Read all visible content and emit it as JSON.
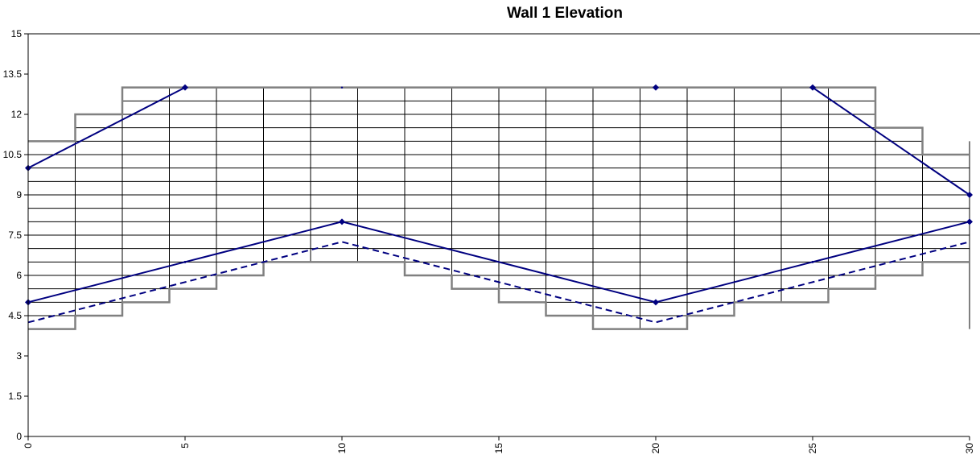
{
  "chart_data": {
    "type": "line",
    "title": "Wall 1 Elevation",
    "xlabel": "",
    "ylabel": "",
    "xlim": [
      0,
      30
    ],
    "ylim": [
      0,
      15
    ],
    "x_ticks": [
      "0",
      "5",
      "10",
      "15",
      "20",
      "25",
      "30"
    ],
    "y_ticks": [
      "0",
      "1.5",
      "3",
      "4.5",
      "6",
      "7.5",
      "9",
      "10.5",
      "12",
      "13.5",
      "15"
    ],
    "x_tick_values": [
      0,
      5,
      10,
      15,
      20,
      25,
      30
    ],
    "y_tick_values": [
      0,
      1.5,
      3,
      4.5,
      6,
      7.5,
      9,
      10.5,
      12,
      13.5,
      15
    ],
    "legend": "none",
    "grid": false,
    "series": [
      {
        "style": "stepped-top-outline",
        "color": "#808080",
        "points": [
          [
            0,
            11
          ],
          [
            1.5,
            11
          ],
          [
            1.5,
            12
          ],
          [
            3,
            12
          ],
          [
            3,
            13
          ],
          [
            27,
            13
          ],
          [
            27,
            11.5
          ],
          [
            28.5,
            11.5
          ],
          [
            28.5,
            10.5
          ],
          [
            30,
            10.5
          ]
        ]
      },
      {
        "style": "stepped-bottom-outline",
        "color": "#808080",
        "points": [
          [
            0,
            4
          ],
          [
            1.5,
            4
          ],
          [
            1.5,
            4.5
          ],
          [
            3,
            4.5
          ],
          [
            3,
            5
          ],
          [
            4.5,
            5
          ],
          [
            4.5,
            5.5
          ],
          [
            6,
            5.5
          ],
          [
            6,
            6
          ],
          [
            7.5,
            6
          ],
          [
            7.5,
            6.5
          ],
          [
            12,
            6.5
          ],
          [
            12,
            6
          ],
          [
            13.5,
            6
          ],
          [
            13.5,
            5.5
          ],
          [
            15,
            5.5
          ],
          [
            15,
            5
          ],
          [
            16.5,
            5
          ],
          [
            16.5,
            4.5
          ],
          [
            18,
            4.5
          ],
          [
            18,
            4
          ],
          [
            21,
            4
          ],
          [
            21,
            4.5
          ],
          [
            22.5,
            4.5
          ],
          [
            22.5,
            5
          ],
          [
            25.5,
            5
          ],
          [
            25.5,
            5.5
          ],
          [
            27,
            5.5
          ],
          [
            27,
            6
          ],
          [
            28.5,
            6
          ],
          [
            28.5,
            6.5
          ],
          [
            30,
            6.5
          ]
        ]
      },
      {
        "style": "top-line-markers",
        "color": "#000080",
        "points": [
          [
            0,
            10
          ],
          [
            5,
            13
          ],
          [
            10,
            13
          ],
          [
            20,
            13
          ],
          [
            25,
            13
          ],
          [
            30,
            9
          ]
        ],
        "segments": [
          [
            0,
            1
          ],
          [
            4,
            5
          ]
        ]
      },
      {
        "style": "bottom-line-markers",
        "color": "#000080",
        "points": [
          [
            0,
            5
          ],
          [
            5,
            6.5
          ],
          [
            10,
            8
          ],
          [
            20,
            5
          ],
          [
            25,
            6.5
          ],
          [
            30,
            8
          ]
        ]
      },
      {
        "style": "bottom-line-dashed",
        "color": "#000080",
        "points": [
          [
            0,
            4.25
          ],
          [
            10,
            7.25
          ],
          [
            20,
            4.25
          ],
          [
            30,
            7.25
          ]
        ]
      }
    ],
    "wall_grid": {
      "color": "#000000",
      "vertical_x": [
        1.5,
        3,
        4.5,
        6,
        7.5,
        9,
        10.5,
        12,
        13.5,
        15,
        16.5,
        18,
        19.5,
        21,
        22.5,
        24,
        25.5,
        27,
        28.5,
        30
      ],
      "row_height": 0.5
    },
    "colors": {
      "outline": "#808080",
      "series": "#000080",
      "grid": "#000000"
    }
  }
}
